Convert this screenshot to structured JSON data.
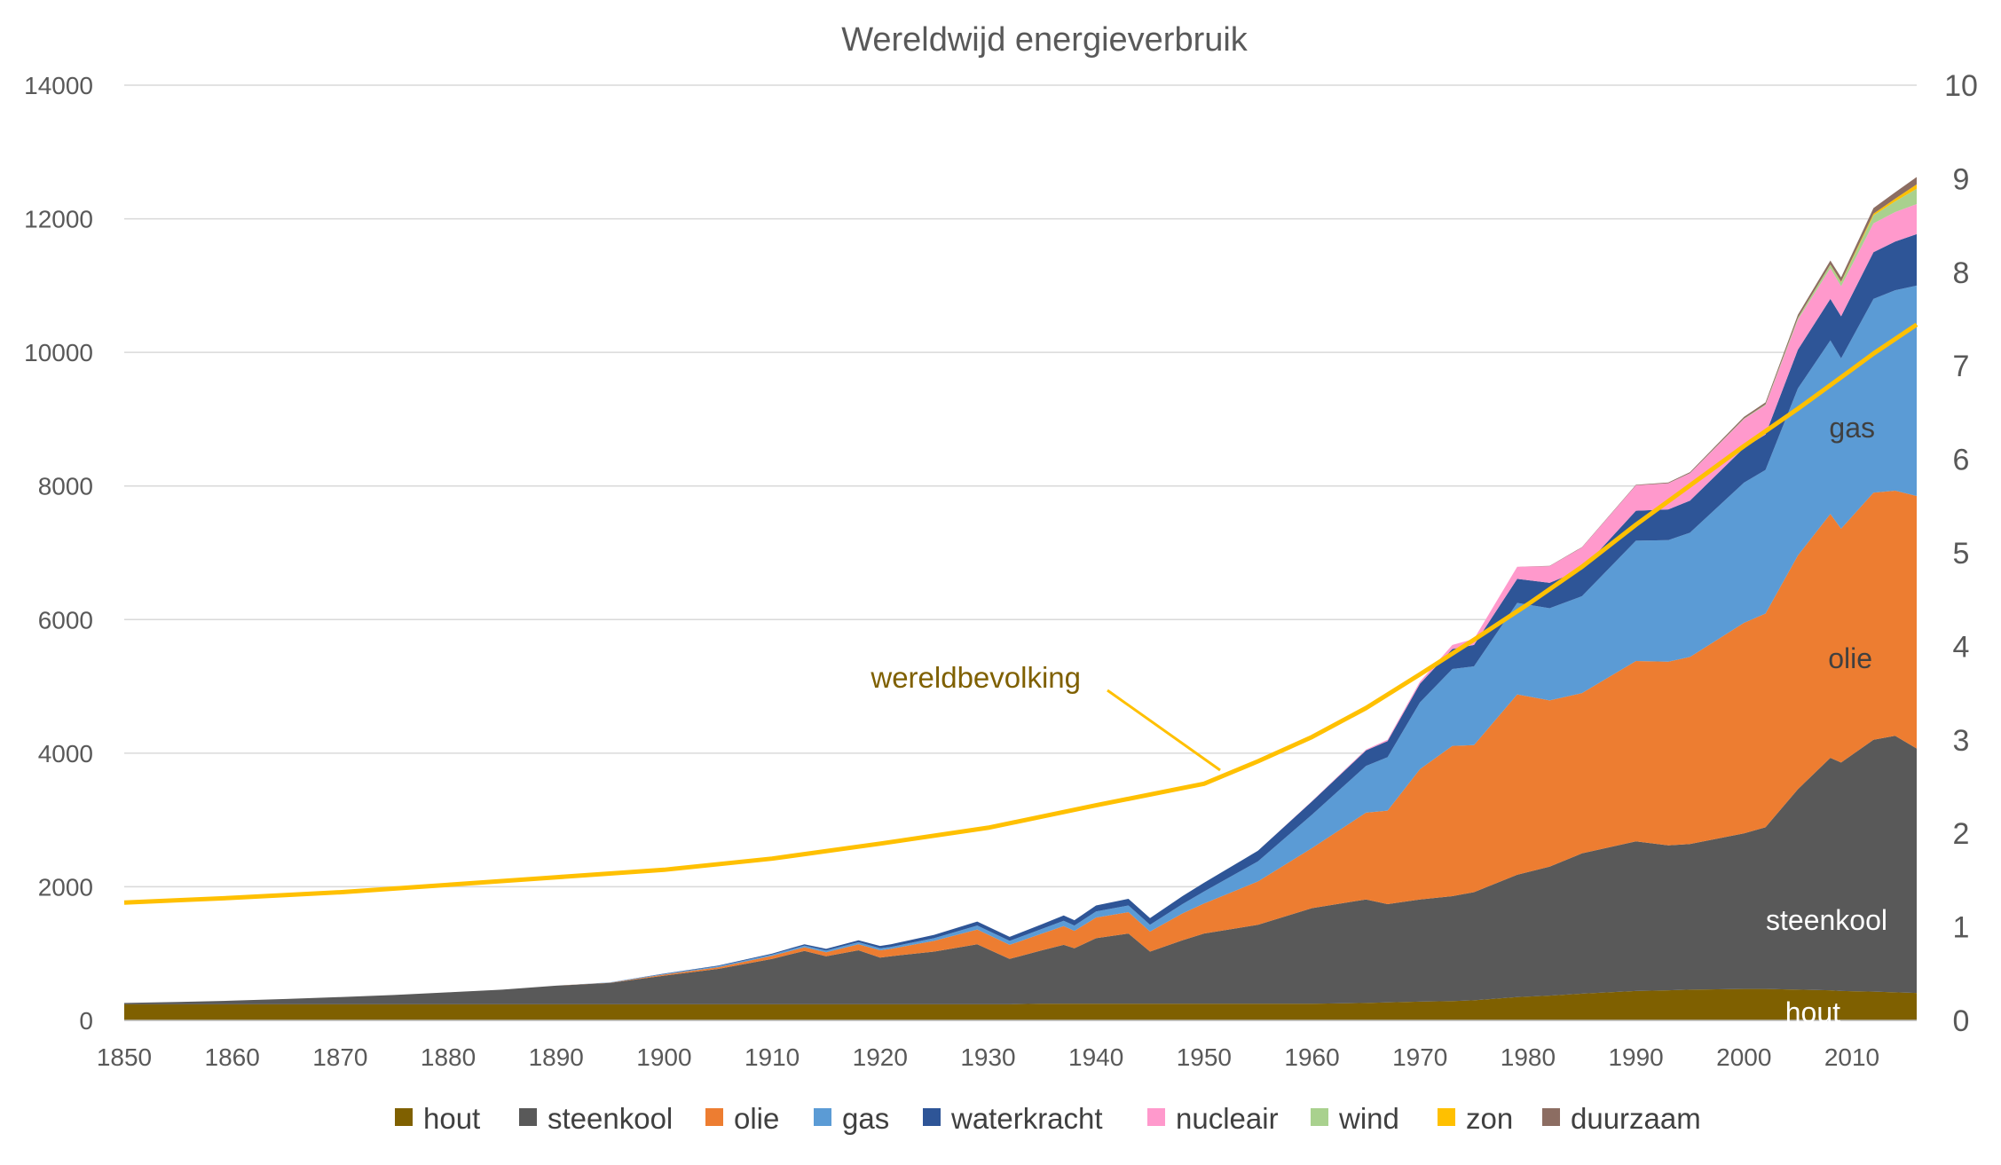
{
  "chart_data": {
    "type": "area",
    "subtype": "stacked-area-with-line",
    "title": "Wereldwijd energieverbruik",
    "xlabel": "",
    "ylabel": "",
    "y2label": "",
    "xlim": [
      1850,
      2016
    ],
    "ylim": [
      0,
      14000
    ],
    "y2lim": [
      0,
      10
    ],
    "grid": "horizontal",
    "legend_position": "bottom",
    "x_ticks": [
      "1850",
      "1860",
      "1870",
      "1880",
      "1890",
      "1900",
      "1910",
      "1920",
      "1930",
      "1940",
      "1950",
      "1960",
      "1970",
      "1980",
      "1990",
      "2000",
      "2010"
    ],
    "y_ticks": [
      "0",
      "2000",
      "4000",
      "6000",
      "8000",
      "10000",
      "12000",
      "14000"
    ],
    "y2_ticks": [
      "0",
      "1",
      "2",
      "3",
      "4",
      "5",
      "6",
      "7",
      "8",
      "9",
      "10"
    ],
    "x": [
      1850,
      1855,
      1860,
      1865,
      1870,
      1875,
      1880,
      1885,
      1890,
      1895,
      1900,
      1905,
      1910,
      1913,
      1915,
      1918,
      1920,
      1921,
      1925,
      1929,
      1932,
      1935,
      1937,
      1938,
      1940,
      1943,
      1945,
      1948,
      1950,
      1955,
      1960,
      1965,
      1967,
      1970,
      1973,
      1975,
      1979,
      1982,
      1985,
      1990,
      1993,
      1995,
      2000,
      2002,
      2005,
      2008,
      2009,
      2012,
      2014,
      2016
    ],
    "series": [
      {
        "name": "hout",
        "axis": "left",
        "color": "#7f6000",
        "values": [
          240,
          240,
          240,
          240,
          240,
          240,
          240,
          240,
          240,
          240,
          240,
          240,
          240,
          240,
          240,
          240,
          240,
          240,
          240,
          240,
          240,
          250,
          250,
          250,
          250,
          250,
          250,
          250,
          250,
          250,
          250,
          260,
          270,
          280,
          290,
          300,
          350,
          370,
          400,
          440,
          450,
          460,
          470,
          470,
          460,
          450,
          440,
          430,
          420,
          410
        ]
      },
      {
        "name": "steenkool",
        "axis": "left",
        "color": "#595959",
        "values": [
          20,
          35,
          55,
          80,
          110,
          140,
          180,
          220,
          280,
          320,
          430,
          530,
          680,
          800,
          720,
          810,
          700,
          720,
          790,
          900,
          680,
          800,
          880,
          830,
          980,
          1050,
          780,
          950,
          1050,
          1180,
          1430,
          1550,
          1470,
          1530,
          1570,
          1620,
          1830,
          1930,
          2100,
          2240,
          2170,
          2180,
          2330,
          2420,
          3000,
          3480,
          3420,
          3770,
          3840,
          3660
        ]
      },
      {
        "name": "olie",
        "axis": "left",
        "color": "#ed7d31",
        "values": [
          0,
          0,
          0,
          0,
          0,
          0,
          0,
          0,
          0,
          5,
          15,
          25,
          45,
          55,
          60,
          90,
          110,
          110,
          160,
          220,
          210,
          250,
          280,
          260,
          310,
          320,
          300,
          400,
          450,
          650,
          900,
          1300,
          1400,
          1950,
          2250,
          2200,
          2700,
          2490,
          2400,
          2700,
          2750,
          2800,
          3150,
          3200,
          3500,
          3650,
          3500,
          3700,
          3670,
          3780
        ]
      },
      {
        "name": "gas",
        "axis": "left",
        "color": "#5b9bd5",
        "values": [
          0,
          0,
          0,
          0,
          0,
          0,
          0,
          0,
          0,
          5,
          10,
          15,
          20,
          25,
          25,
          30,
          30,
          30,
          40,
          60,
          60,
          70,
          80,
          80,
          90,
          100,
          100,
          140,
          180,
          300,
          500,
          700,
          800,
          1000,
          1150,
          1180,
          1370,
          1380,
          1450,
          1800,
          1820,
          1860,
          2100,
          2150,
          2500,
          2600,
          2550,
          2900,
          3000,
          3150
        ]
      },
      {
        "name": "waterkracht",
        "axis": "left",
        "color": "#2e5597",
        "values": [
          0,
          0,
          0,
          0,
          0,
          0,
          0,
          0,
          0,
          0,
          5,
          10,
          15,
          20,
          25,
          30,
          35,
          40,
          50,
          60,
          60,
          70,
          80,
          80,
          90,
          100,
          100,
          120,
          130,
          160,
          200,
          230,
          240,
          280,
          300,
          320,
          360,
          380,
          400,
          450,
          460,
          480,
          520,
          530,
          580,
          620,
          630,
          700,
          730,
          770
        ]
      },
      {
        "name": "nucleair",
        "axis": "left",
        "color": "#ff99cc",
        "values": [
          0,
          0,
          0,
          0,
          0,
          0,
          0,
          0,
          0,
          0,
          0,
          0,
          0,
          0,
          0,
          0,
          0,
          0,
          0,
          0,
          0,
          0,
          0,
          0,
          0,
          0,
          0,
          0,
          0,
          0,
          5,
          15,
          20,
          30,
          60,
          90,
          180,
          250,
          330,
          380,
          390,
          410,
          430,
          440,
          450,
          460,
          450,
          430,
          440,
          450
        ]
      },
      {
        "name": "wind",
        "axis": "left",
        "color": "#a9d18e",
        "values": [
          0,
          0,
          0,
          0,
          0,
          0,
          0,
          0,
          0,
          0,
          0,
          0,
          0,
          0,
          0,
          0,
          0,
          0,
          0,
          0,
          0,
          0,
          0,
          0,
          0,
          0,
          0,
          0,
          0,
          0,
          0,
          0,
          0,
          0,
          0,
          0,
          0,
          0,
          0,
          0,
          2,
          3,
          8,
          12,
          25,
          50,
          60,
          120,
          160,
          230
        ]
      },
      {
        "name": "zon",
        "axis": "left",
        "color": "#ffc000",
        "values": [
          0,
          0,
          0,
          0,
          0,
          0,
          0,
          0,
          0,
          0,
          0,
          0,
          0,
          0,
          0,
          0,
          0,
          0,
          0,
          0,
          0,
          0,
          0,
          0,
          0,
          0,
          0,
          0,
          0,
          0,
          0,
          0,
          0,
          0,
          0,
          0,
          0,
          0,
          0,
          0,
          0,
          0,
          0,
          0,
          2,
          5,
          8,
          25,
          40,
          65
        ]
      },
      {
        "name": "duurzaam",
        "axis": "left",
        "color": "#8c6d62",
        "values": [
          0,
          0,
          0,
          0,
          0,
          0,
          0,
          0,
          0,
          0,
          0,
          0,
          0,
          0,
          0,
          0,
          0,
          0,
          0,
          0,
          0,
          0,
          0,
          0,
          0,
          0,
          0,
          0,
          0,
          0,
          0,
          0,
          0,
          0,
          0,
          0,
          2,
          3,
          5,
          8,
          10,
          15,
          25,
          30,
          45,
          60,
          65,
          85,
          95,
          110
        ]
      }
    ],
    "line_series": {
      "axis": "right",
      "color": "#ffc000",
      "x": [
        1850,
        1860,
        1870,
        1880,
        1890,
        1900,
        1910,
        1920,
        1930,
        1940,
        1950,
        1955,
        1960,
        1965,
        1970,
        1975,
        1980,
        1985,
        1990,
        1995,
        2000,
        2005,
        2010,
        2012,
        2016
      ],
      "values": [
        1.26,
        1.31,
        1.37,
        1.45,
        1.53,
        1.61,
        1.73,
        1.89,
        2.06,
        2.3,
        2.53,
        2.77,
        3.03,
        3.34,
        3.7,
        4.07,
        4.45,
        4.85,
        5.3,
        5.72,
        6.14,
        6.54,
        6.96,
        7.13,
        7.44
      ]
    },
    "labels": {
      "hout": "hout",
      "steenkool": "steenkool",
      "olie": "olie",
      "gas": "gas",
      "wereldbevolking": "wereldbevolking"
    },
    "label_colors": {
      "hout": "#ffffff",
      "steenkool": "#ffffff",
      "olie": "#404040",
      "gas": "#404040",
      "wereldbevolking": "#7f6000"
    }
  }
}
